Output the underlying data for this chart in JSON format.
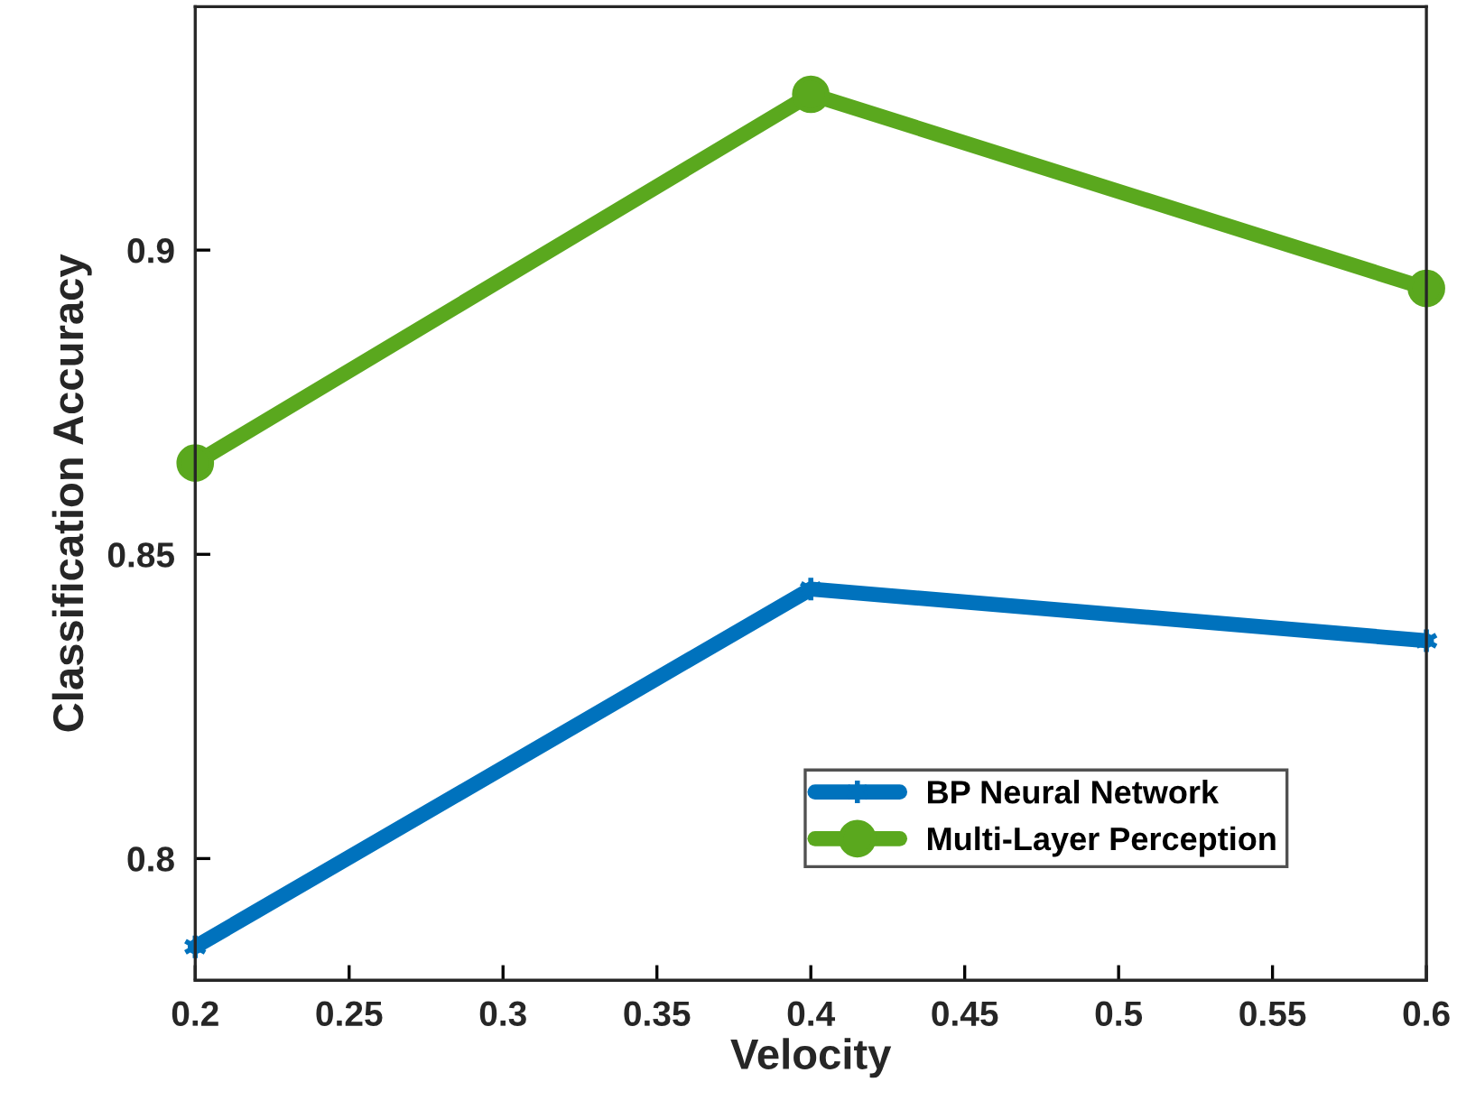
{
  "chart_data": {
    "type": "line",
    "xlabel": "Velocity",
    "ylabel": "Classification Accuracy",
    "x": [
      0.2,
      0.4,
      0.6
    ],
    "series": [
      {
        "name": "BP Neural Network",
        "color": "#0072bd",
        "marker": "cross",
        "values": [
          0.7855,
          0.8443,
          0.8358
        ]
      },
      {
        "name": "Multi-Layer Perception",
        "color": "#5aa81e",
        "marker": "circle",
        "values": [
          0.865,
          0.9256,
          0.8937
        ]
      }
    ],
    "xlim": [
      0.2,
      0.6
    ],
    "xticks": [
      0.2,
      0.25,
      0.3,
      0.35,
      0.4,
      0.45,
      0.5,
      0.55,
      0.6
    ],
    "ylim": [
      0.78,
      0.94
    ],
    "yticks": [
      0.8,
      0.85,
      0.9
    ],
    "legend": "lower right",
    "grid": false,
    "line_style": "solid"
  }
}
